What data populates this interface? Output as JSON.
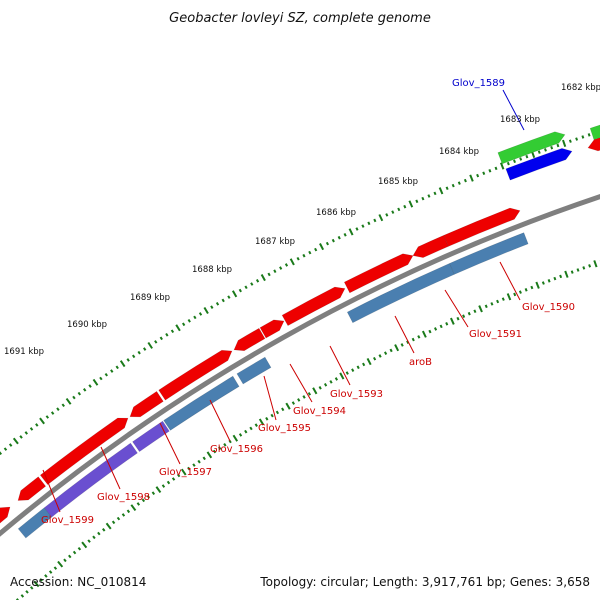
{
  "title": "Geobacter lovleyi SZ, complete genome",
  "footer": {
    "accession": "Accession: NC_010814",
    "summary": "Topology: circular; Length: 3,917,761 bp; Genes: 3,658"
  },
  "colors": {
    "backbone": "#7f7f7f",
    "tick": "#1a7a1a",
    "gene_forward": "#ee0000",
    "gene_cds": "#4a7fb0",
    "gene_cds_alt": "#6a4fd0",
    "gene_highlight_green": "#33cc33",
    "gene_highlight_blue": "#0000ee",
    "label_red": "#cc0000",
    "label_blue": "#0000cc"
  },
  "scale_labels": [
    "1682 kbp",
    "1683 kbp",
    "1684 kbp",
    "1685 kbp",
    "1686 kbp",
    "1687 kbp",
    "1688 kbp",
    "1689 kbp",
    "1690 kbp",
    "1691 kbp"
  ],
  "gene_labels": [
    {
      "text": "Glov_1589",
      "color": "blue"
    },
    {
      "text": "Glov_1590",
      "color": "red"
    },
    {
      "text": "Glov_1591",
      "color": "red"
    },
    {
      "text": "aroB",
      "color": "red"
    },
    {
      "text": "Glov_1593",
      "color": "red"
    },
    {
      "text": "Glov_1594",
      "color": "red"
    },
    {
      "text": "Glov_1595",
      "color": "red"
    },
    {
      "text": "Glov_1596",
      "color": "red"
    },
    {
      "text": "Glov_1597",
      "color": "red"
    },
    {
      "text": "Glov_1598",
      "color": "red"
    },
    {
      "text": "Glov_1599",
      "color": "red"
    }
  ]
}
